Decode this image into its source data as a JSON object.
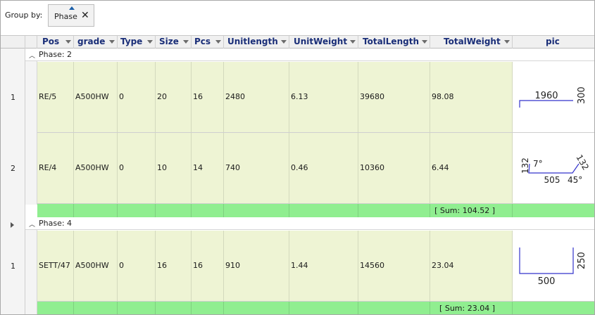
{
  "group_panel": {
    "label": "Group by:",
    "chip_label": "Phase",
    "chip_close": "✕"
  },
  "columns": [
    {
      "key": "pos",
      "label": "Pos"
    },
    {
      "key": "grade",
      "label": "grade"
    },
    {
      "key": "type",
      "label": "Type"
    },
    {
      "key": "size",
      "label": "Size"
    },
    {
      "key": "pcs",
      "label": "Pcs"
    },
    {
      "key": "unitlength",
      "label": "Unitlength"
    },
    {
      "key": "unitweight",
      "label": "UnitWeight"
    },
    {
      "key": "totallength",
      "label": "TotalLength"
    },
    {
      "key": "totalweight",
      "label": "TotalWeight"
    },
    {
      "key": "pic",
      "label": "pic"
    }
  ],
  "groups": [
    {
      "label": "Phase: 2",
      "rows": [
        {
          "num": "1",
          "cells": {
            "pos": "RE/5",
            "grade": "A500HW",
            "type": "0",
            "size": "20",
            "pcs": "16",
            "unitlength": "2480",
            "unitweight": "6.13",
            "totallength": "39680",
            "totalweight": "98.08"
          },
          "pic": {
            "length": "1960",
            "leg": "300"
          }
        },
        {
          "num": "2",
          "cells": {
            "pos": "RE/4",
            "grade": "A500HW",
            "type": "0",
            "size": "10",
            "pcs": "14",
            "unitlength": "740",
            "unitweight": "0.46",
            "totallength": "10360",
            "totalweight": "6.44"
          },
          "pic": {
            "left_leg": "132",
            "angle_left": "7°",
            "base": "505",
            "right_leg": "132",
            "angle_right": "45°"
          }
        }
      ],
      "sum": "[ Sum: 104.52 ]"
    },
    {
      "label": "Phase: 4",
      "rows": [
        {
          "num": "1",
          "cells": {
            "pos": "SETT/47",
            "grade": "A500HW",
            "type": "0",
            "size": "16",
            "pcs": "16",
            "unitlength": "910",
            "unitweight": "1.44",
            "totallength": "14560",
            "totalweight": "23.04"
          },
          "pic": {
            "base": "500",
            "leg": "250"
          }
        }
      ],
      "sum": "[ Sum: 23.04 ]"
    }
  ],
  "icons": {
    "group_chevron": "collapse-chevron-icon",
    "filter": "filter-dropdown-icon",
    "expander": "row-expander-icon"
  }
}
